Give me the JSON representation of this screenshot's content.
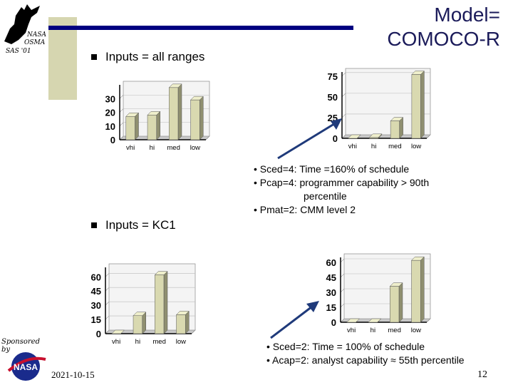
{
  "slide": {
    "title_line1": "Model=",
    "title_line2": "COMOCO-R",
    "logo": {
      "line1": "NASA",
      "line2": "OSMA",
      "line3": "SAS '01"
    },
    "bullet1": "Inputs = all ranges",
    "bullet2": "Inputs = KC1",
    "notes1": [
      "• Sced=4: Time =160% of schedule",
      "• Pcap=4: programmer capability > 90th",
      "percentile",
      "• Pmat=2: CMM level 2"
    ],
    "notes2": [
      "• Sced=2: Time = 100% of schedule",
      "• Acap=2: analyst capability ≈ 55th  percentile"
    ],
    "sponsor_line1": "Sponsored",
    "sponsor_line2": "by",
    "sponsor_logo": "NASA",
    "date": "2021-10-15",
    "page_number": "12",
    "colors": {
      "bar": "#d9d9b0",
      "bar_side": "#8f8f70",
      "arrow": "#1f3a7a",
      "rule": "#000080"
    }
  },
  "chart_data": [
    {
      "id": "chart1",
      "type": "bar",
      "categories": [
        "vhi",
        "hi",
        "med",
        "low"
      ],
      "values": [
        17,
        18,
        38,
        29
      ],
      "ylim": [
        0,
        40
      ],
      "yticks": [
        0,
        10,
        20,
        30
      ]
    },
    {
      "id": "chart2",
      "type": "bar",
      "categories": [
        "vhi",
        "hi",
        "med",
        "low"
      ],
      "values": [
        0,
        1,
        21,
        77
      ],
      "ylim": [
        0,
        80
      ],
      "yticks": [
        0,
        25,
        50,
        75
      ]
    },
    {
      "id": "chart3",
      "type": "bar",
      "categories": [
        "vhi",
        "hi",
        "med",
        "low"
      ],
      "values": [
        0,
        19,
        62,
        20
      ],
      "ylim": [
        0,
        70
      ],
      "yticks": [
        0,
        15,
        30,
        45,
        60
      ]
    },
    {
      "id": "chart4",
      "type": "bar",
      "categories": [
        "vhi",
        "hi",
        "med",
        "low"
      ],
      "values": [
        0,
        0,
        36,
        62
      ],
      "ylim": [
        0,
        65
      ],
      "yticks": [
        0,
        15,
        30,
        45,
        60
      ]
    }
  ]
}
